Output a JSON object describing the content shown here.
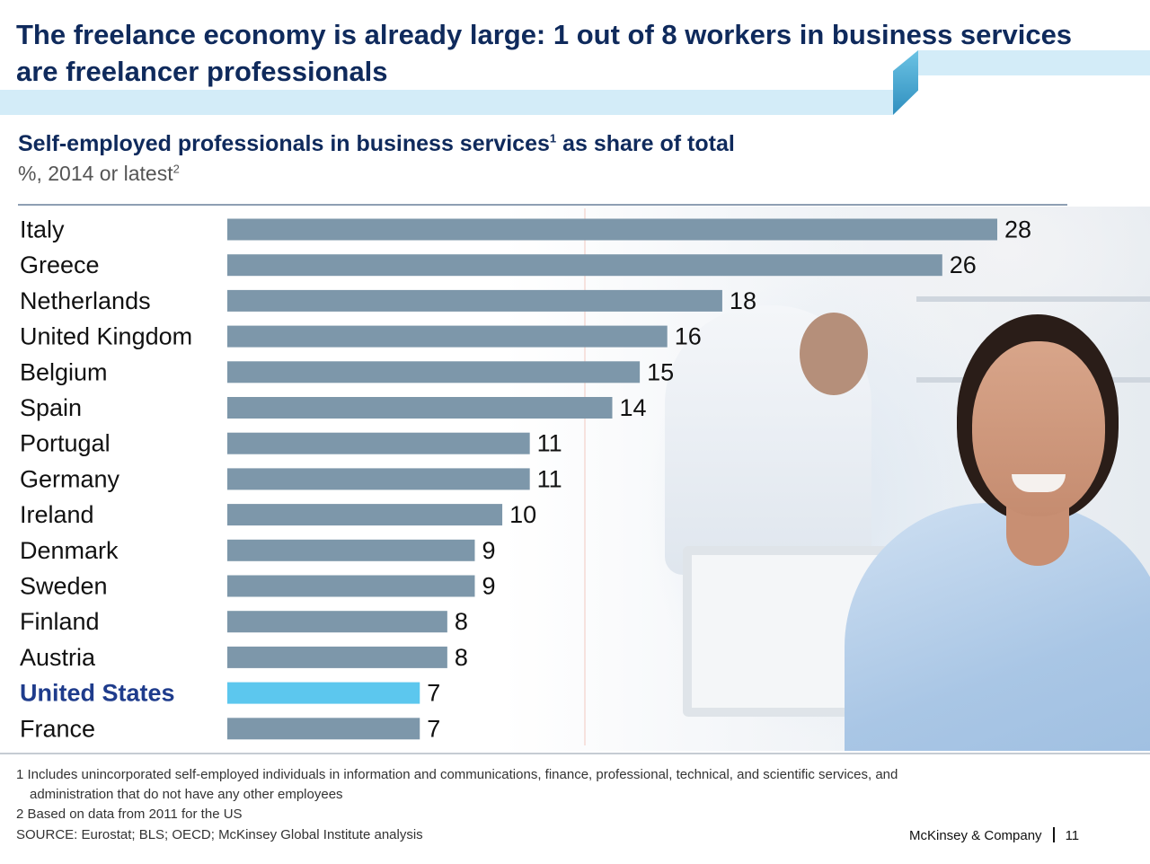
{
  "slide": {
    "title": "The freelance economy is already large: 1 out of 8 workers in business services are freelancer professionals",
    "subtitle": "Self-employed professionals in business services",
    "subtitle_sup": "1",
    "subtitle_rest": " as share of total",
    "units": "%, 2014 or latest",
    "units_sup": "2",
    "footnote_1_marker": "1",
    "footnote_1_line1": "Includes unincorporated self-employed individuals in information and communications, finance, professional, technical, and scientific services, and",
    "footnote_1_line2": "administration that do not have any other employees",
    "footnote_2": "2 Based on data from 2011 for the US",
    "source": "SOURCE: Eurostat; BLS; OECD; McKinsey Global Institute analysis",
    "brand": "McKinsey & Company",
    "page_number": "11"
  },
  "chart_data": {
    "type": "bar",
    "orientation": "horizontal",
    "title": "Self-employed professionals in business services as share of total",
    "subtitle": "%, 2014 or latest",
    "categories": [
      "Italy",
      "Greece",
      "Netherlands",
      "United Kingdom",
      "Belgium",
      "Spain",
      "Portugal",
      "Germany",
      "Ireland",
      "Denmark",
      "Sweden",
      "Finland",
      "Austria",
      "United States",
      "France"
    ],
    "values": [
      28,
      26,
      18,
      16,
      15,
      14,
      11,
      11,
      10,
      9,
      9,
      8,
      8,
      7,
      7
    ],
    "highlight": "United States",
    "colors": {
      "bar": "#7d97aa",
      "highlight": "#5cc7ee",
      "label": "#111111",
      "highlight_label": "#1f3c8c"
    },
    "xlim": [
      0,
      28
    ],
    "grid": false,
    "legend": "none"
  }
}
